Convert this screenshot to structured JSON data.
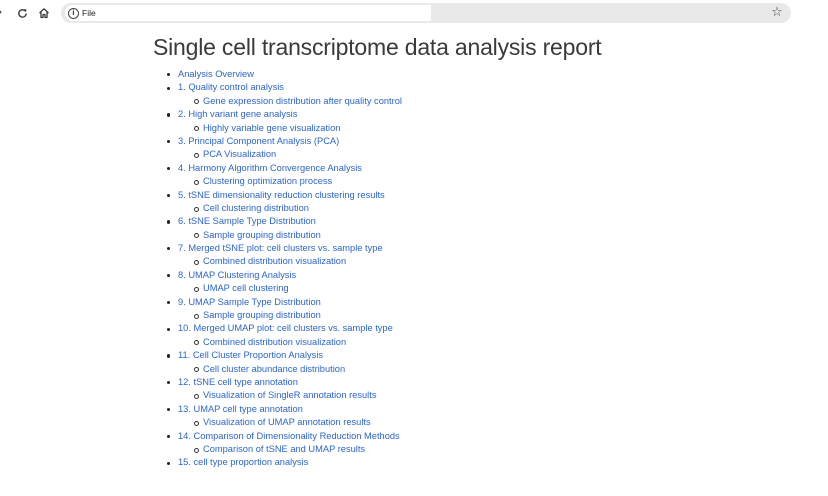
{
  "browser": {
    "nav_icons": {
      "back": "chevron-right-icon",
      "reload": "reload-icon",
      "home": "home-icon",
      "bookmark": "star-icon"
    },
    "site_info_label": "File",
    "url": ""
  },
  "page": {
    "title": "Single cell transcriptome data analysis report",
    "link_color": "#2d66c7",
    "toc": [
      {
        "label": "Analysis Overview",
        "children": []
      },
      {
        "label": "1. Quality control analysis",
        "children": [
          "Gene expression distribution after quality control"
        ]
      },
      {
        "label": "2. High variant gene analysis",
        "children": [
          "Highly variable gene visualization"
        ]
      },
      {
        "label": "3. Principal Component Analysis (PCA)",
        "children": [
          "PCA Visualization"
        ]
      },
      {
        "label": "4. Harmony Algorithm Convergence Analysis",
        "children": [
          "Clustering optimization process"
        ]
      },
      {
        "label": "5. tSNE dimensionality reduction clustering results",
        "children": [
          "Cell clustering distribution"
        ]
      },
      {
        "label": "6. tSNE Sample Type Distribution",
        "children": [
          "Sample grouping distribution"
        ]
      },
      {
        "label": "7. Merged tSNE plot: cell clusters vs. sample type",
        "children": [
          "Combined distribution visualization"
        ]
      },
      {
        "label": "8. UMAP Clustering Analysis",
        "children": [
          "UMAP cell clustering"
        ]
      },
      {
        "label": "9. UMAP Sample Type Distribution",
        "children": [
          "Sample grouping distribution"
        ]
      },
      {
        "label": "10. Merged UMAP plot: cell clusters vs. sample type",
        "children": [
          "Combined distribution visualization"
        ]
      },
      {
        "label": "11. Cell Cluster Proportion Analysis",
        "children": [
          "Cell cluster abundance distribution"
        ]
      },
      {
        "label": "12. tSNE cell type annotation",
        "children": [
          "Visualization of SingleR annotation results"
        ]
      },
      {
        "label": "13. UMAP cell type annotation",
        "children": [
          "Visualization of UMAP annotation results"
        ]
      },
      {
        "label": "14. Comparison of Dimensionality Reduction Methods",
        "children": [
          "Comparison of tSNE and UMAP results"
        ]
      },
      {
        "label": "15. cell type proportion analysis",
        "children": []
      }
    ]
  }
}
